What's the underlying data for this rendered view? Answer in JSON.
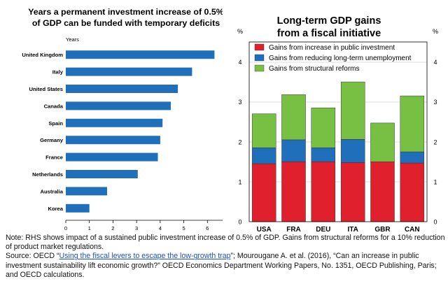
{
  "chart_data": [
    {
      "type": "bar",
      "orientation": "horizontal",
      "title": "Years a permanent investment increase of 0.5% of GDP can be funded with temporary deficits",
      "title_lines": [
        "Years a permanent investment increase of 0.5%",
        "of GDP can be funded with temporary deficits"
      ],
      "unit_label": "Years",
      "categories": [
        "United Kingdom",
        "Italy",
        "United States",
        "Canada",
        "Spain",
        "Germany",
        "France",
        "Netherlands",
        "Australia",
        "Korea"
      ],
      "values": [
        6.3,
        5.35,
        4.75,
        4.45,
        4.1,
        4.0,
        3.9,
        3.05,
        1.75,
        1.0
      ],
      "xlim": [
        0,
        7
      ],
      "xticks": [
        "0",
        "1",
        "2",
        "3",
        "4",
        "5",
        "6",
        "7"
      ],
      "bar_color": "#1f6fba"
    },
    {
      "type": "bar",
      "stacked": true,
      "title": "Long-term GDP gains from a fiscal initiative",
      "title_lines": [
        "Long-term GDP gains",
        "from a fiscal initiative"
      ],
      "ylabel_left": "%",
      "ylabel_right": "%",
      "categories": [
        "USA",
        "FRA",
        "DEU",
        "ITA",
        "GBR",
        "CAN"
      ],
      "series": [
        {
          "name": "Gains from increase in public investment",
          "color": "#e0202c",
          "values": [
            1.45,
            1.5,
            1.5,
            1.48,
            1.5,
            1.47
          ]
        },
        {
          "name": "Gains from reducing long-term unemployment",
          "color": "#1f6fba",
          "values": [
            0.4,
            0.55,
            0.35,
            0.58,
            0.0,
            0.28
          ]
        },
        {
          "name": "Gains from structural reforms",
          "color": "#78c043",
          "values": [
            0.85,
            1.13,
            1.0,
            1.44,
            0.97,
            1.4
          ]
        }
      ],
      "ylim": [
        0,
        4.5
      ],
      "yticks": [
        "0",
        "1",
        "2",
        "3",
        "4"
      ],
      "legend_position": "top-left"
    }
  ],
  "notes": {
    "note": "Note: RHS shows impact of a sustained public investment increase of 0.5% of GDP. Gains from structural reforms for a 10% reduction of product market regulations.",
    "source_prefix": "Source: OECD “",
    "source_link": "Using the fiscal levers to escape the low-growth trap",
    "source_suffix": "”; Mourougane A. et al. (2016), “Can an increase in public investment sustainability lift economic growth?” OECD Economics Department Working Papers, No. 1351, OECD Publishing, Paris; and OECD calculations."
  }
}
